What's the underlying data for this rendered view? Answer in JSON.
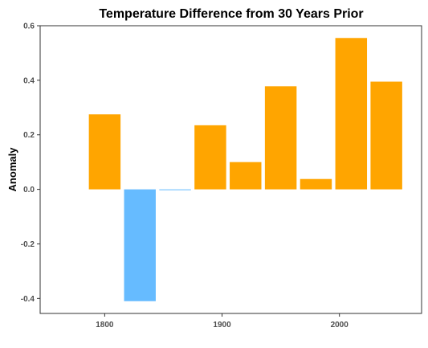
{
  "chart_data": {
    "type": "bar",
    "title": "Temperature Difference from 30 Years Prior",
    "xlabel": "",
    "ylabel": "Anomaly",
    "x": [
      1800,
      1830,
      1860,
      1890,
      1920,
      1950,
      1980,
      2010,
      2040
    ],
    "values": [
      0.275,
      -0.41,
      -0.003,
      0.235,
      0.1,
      0.378,
      0.038,
      0.555,
      0.395
    ],
    "xlim": [
      1745,
      2070
    ],
    "ylim": [
      -0.455,
      0.6
    ],
    "xticks": [
      1800,
      1900,
      2000
    ],
    "xtick_labels": [
      "1800",
      "1900",
      "2000"
    ],
    "yticks": [
      -0.4,
      -0.2,
      0.0,
      0.2,
      0.4,
      0.6
    ],
    "ytick_labels": [
      "-0.4",
      "-0.2",
      "0.0",
      "0.2",
      "0.4",
      "0.6"
    ],
    "grid": false,
    "legend": "none",
    "colors": {
      "positive": "#FFA500",
      "negative": "#66BBFF"
    }
  }
}
